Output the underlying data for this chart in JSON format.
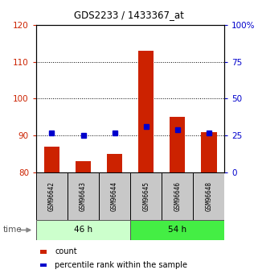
{
  "title": "GDS2233 / 1433367_at",
  "samples": [
    "GSM96642",
    "GSM96643",
    "GSM96644",
    "GSM96645",
    "GSM96646",
    "GSM96648"
  ],
  "count_values": [
    87,
    83,
    85,
    113,
    95,
    91
  ],
  "percentile_values": [
    27,
    25,
    27,
    31,
    29,
    27
  ],
  "ylim_left": [
    80,
    120
  ],
  "ylim_right": [
    0,
    100
  ],
  "yticks_left": [
    80,
    90,
    100,
    110,
    120
  ],
  "yticks_right": [
    0,
    25,
    50,
    75,
    100
  ],
  "groups": [
    {
      "label": "46 h",
      "start": 0,
      "end": 3,
      "color": "#ccffcc"
    },
    {
      "label": "54 h",
      "start": 3,
      "end": 6,
      "color": "#44ee44"
    }
  ],
  "bar_color": "#cc2200",
  "dot_color": "#0000cc",
  "bar_width": 0.5,
  "left_axis_color": "#cc2200",
  "right_axis_color": "#0000cc",
  "sample_box_color": "#c8c8c8",
  "time_label": "time",
  "legend_count": "count",
  "legend_percentile": "percentile rank within the sample"
}
